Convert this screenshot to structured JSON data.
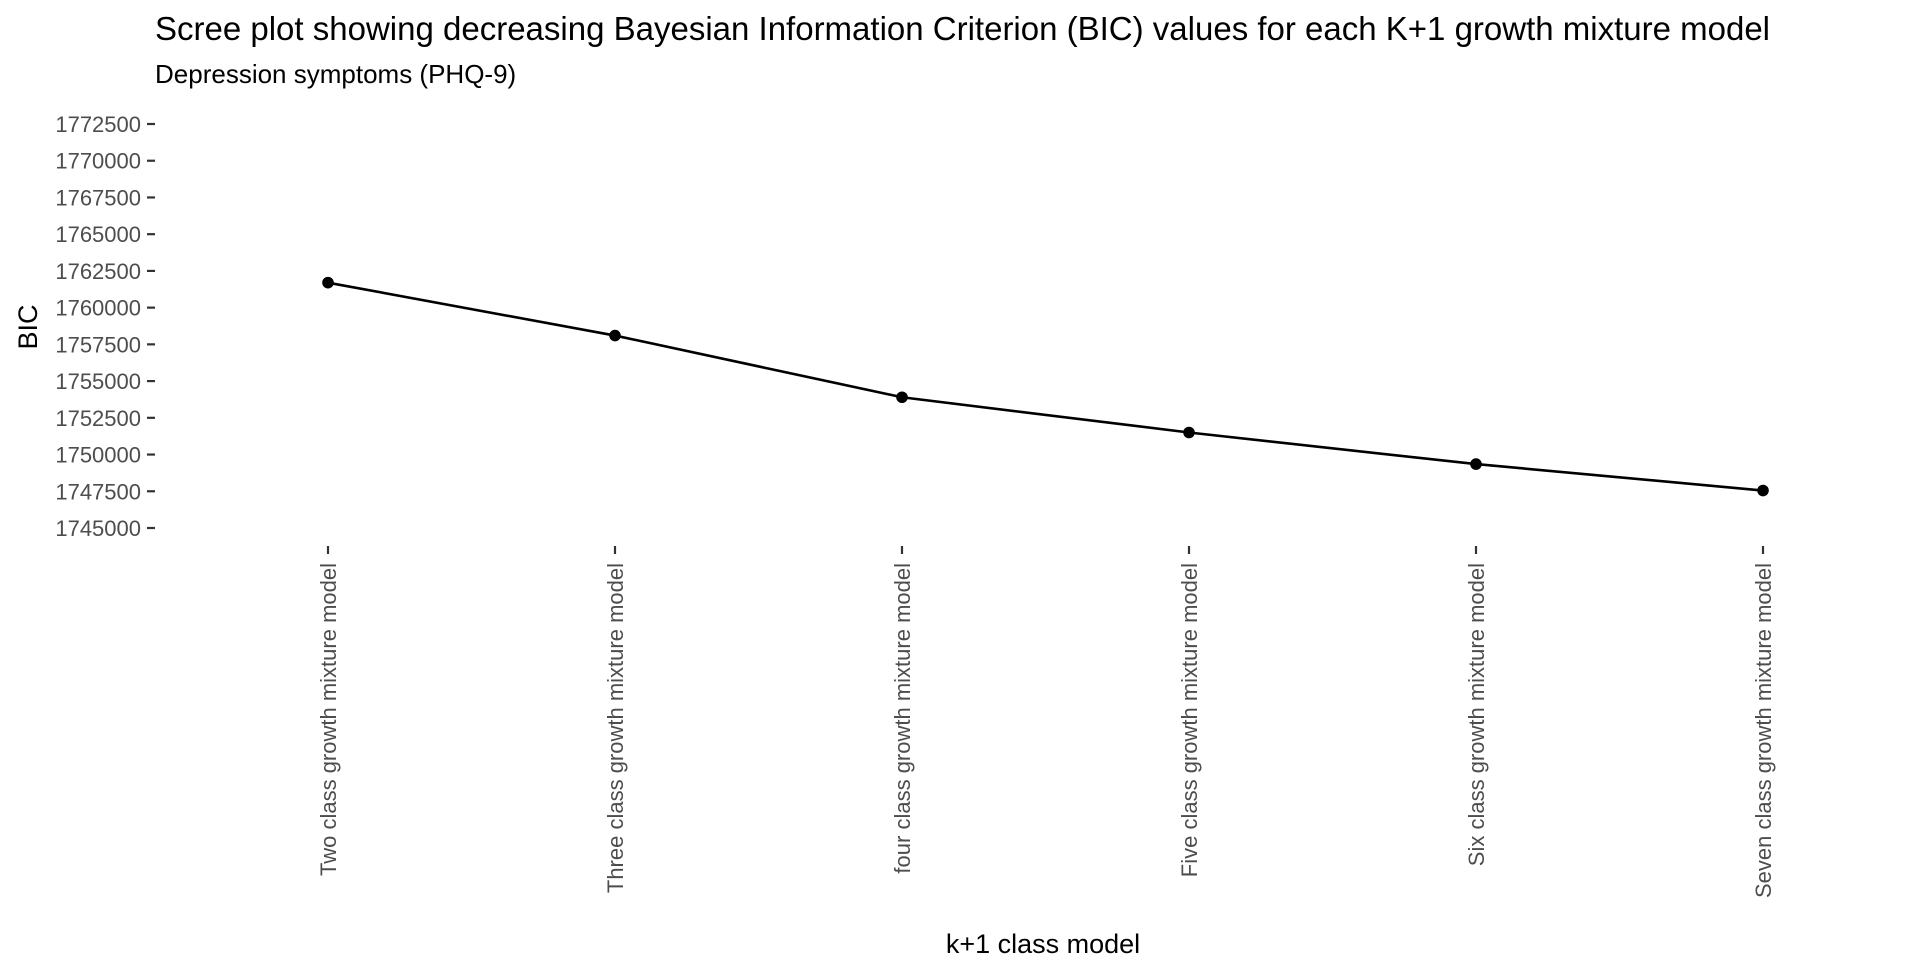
{
  "chart_data": {
    "type": "line",
    "title": "Scree plot showing decreasing Bayesian Information Criterion (BIC) values for each K+1 growth mixture model",
    "subtitle": "Depression symptoms (PHQ-9)",
    "xlabel": "k+1 class model",
    "ylabel": "BIC",
    "categories": [
      "Two class growth mixture model",
      "Three class growth mixture model",
      "four class growth mixture model",
      "Five class growth mixture model",
      "Six class growth mixture model",
      "Seven class growth mixture model"
    ],
    "series": [
      {
        "values": [
          1761700,
          1758100,
          1753900,
          1751500,
          1749350,
          1747550
        ]
      }
    ],
    "ylim": [
      1745000,
      1772500
    ],
    "yticks": [
      1745000,
      1747500,
      1750000,
      1752500,
      1755000,
      1757500,
      1760000,
      1762500,
      1765000,
      1767500,
      1770000,
      1772500
    ],
    "grid": false,
    "legend": "none",
    "colors": {
      "line": "#000000",
      "point": "#000000",
      "tick_text": "#4d4d4d"
    }
  }
}
